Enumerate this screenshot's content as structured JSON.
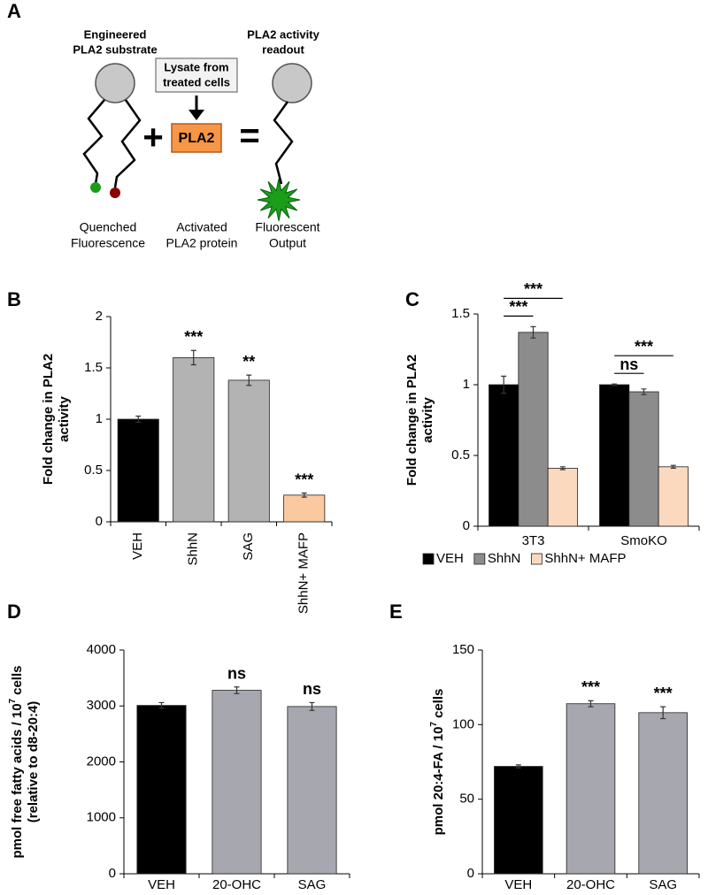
{
  "diagram": {
    "label": "A",
    "substrate": [
      "Engineered",
      "PLA2 substrate"
    ],
    "lysate": [
      "Lysate from",
      "treated cells"
    ],
    "enzyme": "PLA2",
    "readout": [
      "PLA2 activity",
      "readout"
    ],
    "plus": "+",
    "equals": "=",
    "captions": [
      [
        "Quenched",
        "Fluorescence"
      ],
      [
        "Activated",
        "PLA2 protein"
      ],
      [
        "Fluorescent",
        "Output"
      ]
    ]
  },
  "chart_data": [
    {
      "type": "bar",
      "panel": "B",
      "ylabel": [
        "Fold change in PLA2",
        "activity"
      ],
      "categories": [
        "VEH",
        "ShhN",
        "SAG",
        "ShhN+ MAFP"
      ],
      "values": [
        1,
        1.6,
        1.38,
        0.26
      ],
      "errors": [
        0.03,
        0.07,
        0.05,
        0.02
      ],
      "colors": [
        "#000000",
        "#b3b3b3",
        "#b3b3b3",
        "#fbc9a0"
      ],
      "ylim": [
        0,
        2
      ],
      "yticks": [
        0,
        0.5,
        1,
        1.5,
        2
      ],
      "annotations": [
        {
          "category": "ShhN",
          "text": "***"
        },
        {
          "category": "SAG",
          "text": "**"
        },
        {
          "category": "ShhN+ MAFP",
          "text": "***"
        }
      ]
    },
    {
      "type": "grouped_bar",
      "panel": "C",
      "ylabel": [
        "Fold change in PLA2",
        "activity"
      ],
      "categories": [
        "3T3",
        "SmoKO"
      ],
      "series": [
        {
          "name": "VEH",
          "color": "#000000",
          "values": [
            1,
            1
          ],
          "errors": [
            0.06,
            0.005
          ]
        },
        {
          "name": "ShhN",
          "color": "#8c8c8c",
          "values": [
            1.37,
            0.95
          ],
          "errors": [
            0.04,
            0.02
          ]
        },
        {
          "name": "ShhN+ MAFP",
          "color": "#fbd9bf",
          "values": [
            0.41,
            0.42
          ],
          "errors": [
            0.01,
            0.01
          ]
        }
      ],
      "ylim": [
        0,
        1.5
      ],
      "yticks": [
        0,
        0.5,
        1,
        1.5
      ],
      "legend": "bottom",
      "brackets": [
        {
          "category": "3T3",
          "from": "VEH",
          "to": "ShhN",
          "text": "***"
        },
        {
          "category": "3T3",
          "from": "VEH",
          "to": "ShhN+ MAFP",
          "text": "***"
        },
        {
          "category": "SmoKO",
          "from": "VEH",
          "to": "ShhN",
          "text": "ns"
        },
        {
          "category": "SmoKO",
          "from": "VEH",
          "to": "ShhN+ MAFP",
          "text": "***"
        }
      ]
    },
    {
      "type": "bar",
      "panel": "D",
      "ylabel": [
        {
          "text": "pmol free fatty acids / 10",
          "sup": "7",
          "tail": "cells"
        },
        "(relative to d8-20:4)"
      ],
      "categories": [
        "VEH",
        "20-OHC",
        "SAG"
      ],
      "values": [
        3010,
        3280,
        2990
      ],
      "errors": [
        50,
        60,
        70
      ],
      "colors": [
        "#000000",
        "#a7a7b0",
        "#a7a7b0"
      ],
      "ylim": [
        0,
        4000
      ],
      "yticks": [
        0,
        1000,
        2000,
        3000,
        4000
      ],
      "annotations": [
        {
          "category": "20-OHC",
          "text": "ns"
        },
        {
          "category": "SAG",
          "text": "ns"
        }
      ]
    },
    {
      "type": "bar",
      "panel": "E",
      "ylabel": [
        {
          "text": "pmol 20:4-FA / 10",
          "sup": "7",
          "tail": "cells"
        }
      ],
      "categories": [
        "VEH",
        "20-OHC",
        "SAG"
      ],
      "values": [
        72,
        114,
        108
      ],
      "errors": [
        1,
        2,
        4
      ],
      "colors": [
        "#000000",
        "#a7a7b0",
        "#a7a7b0"
      ],
      "ylim": [
        0,
        150
      ],
      "yticks": [
        0,
        50,
        100,
        150
      ],
      "annotations": [
        {
          "category": "20-OHC",
          "text": "***"
        },
        {
          "category": "SAG",
          "text": "***"
        }
      ]
    }
  ]
}
